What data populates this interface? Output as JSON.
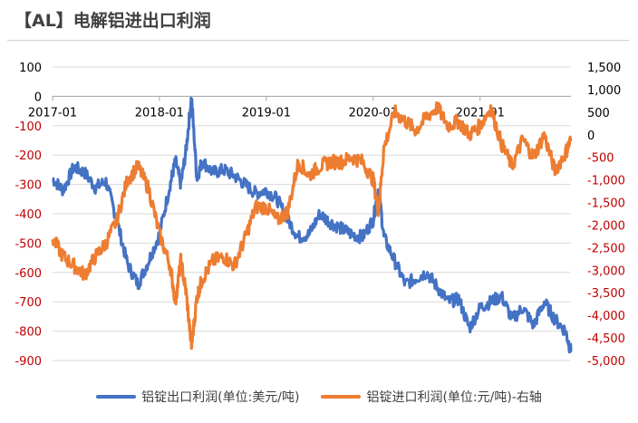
{
  "page": {
    "title": "【AL】电解铝进出口利润"
  },
  "colors": {
    "left_series": "#4472C4",
    "right_series": "#ED7D31",
    "neg_tick": "#C00000",
    "pos_tick": "#000000",
    "grid": "#D9D9D9"
  },
  "chart_data": {
    "type": "line",
    "title": "【AL】电解铝进出口利润",
    "x_type": "date",
    "x_range": [
      2017.0,
      2021.85
    ],
    "x_tick_labels": [
      "2017-01",
      "2018-01",
      "2019-01",
      "2020-01",
      "2021-01"
    ],
    "x_tick_values": [
      2017.0,
      2018.0,
      2019.0,
      2020.0,
      2021.0
    ],
    "y_left": {
      "label": "单位:美元/吨",
      "range": [
        -900,
        100
      ],
      "ticks": [
        100,
        0,
        -100,
        -200,
        -300,
        -400,
        -500,
        -600,
        -700,
        -800,
        -900
      ],
      "tick_labels": [
        "100",
        "0",
        "-100",
        "-200",
        "-300",
        "-400",
        "-500",
        "-600",
        "-700",
        "-800",
        "-900"
      ]
    },
    "y_right": {
      "label": "单位:元/吨",
      "range": [
        -5000,
        1500
      ],
      "ticks": [
        1500,
        1000,
        500,
        0,
        -500,
        -1000,
        -1500,
        -2000,
        -2500,
        -3000,
        -3500,
        -4000,
        -4500,
        -5000
      ],
      "tick_labels": [
        "1,500",
        "1,000",
        "500",
        "0",
        "-500",
        "-1,000",
        "-1,500",
        "-2,000",
        "-2,500",
        "-3,000",
        "-3,500",
        "-4,000",
        "-4,500",
        "-5,000"
      ]
    },
    "grid": true,
    "legend_position": "bottom",
    "series": [
      {
        "name": "铝锭出口利润(单位:美元/吨)",
        "axis": "left",
        "x": [
          2017.0,
          2017.1,
          2017.2,
          2017.3,
          2017.4,
          2017.5,
          2017.6,
          2017.7,
          2017.8,
          2017.9,
          2018.0,
          2018.1,
          2018.15,
          2018.2,
          2018.25,
          2018.3,
          2018.35,
          2018.4,
          2018.5,
          2018.6,
          2018.7,
          2018.8,
          2018.9,
          2019.0,
          2019.1,
          2019.2,
          2019.3,
          2019.4,
          2019.5,
          2019.6,
          2019.7,
          2019.8,
          2019.9,
          2020.0,
          2020.05,
          2020.1,
          2020.2,
          2020.3,
          2020.4,
          2020.5,
          2020.6,
          2020.7,
          2020.8,
          2020.9,
          2021.0,
          2021.1,
          2021.2,
          2021.3,
          2021.4,
          2021.5,
          2021.6,
          2021.7,
          2021.8,
          2021.85
        ],
        "values": [
          -280,
          -320,
          -240,
          -260,
          -310,
          -290,
          -420,
          -570,
          -640,
          -560,
          -470,
          -300,
          -220,
          -300,
          -180,
          0,
          -280,
          -220,
          -260,
          -250,
          -270,
          -300,
          -330,
          -320,
          -350,
          -420,
          -480,
          -470,
          -400,
          -430,
          -450,
          -470,
          -480,
          -420,
          -310,
          -480,
          -560,
          -640,
          -620,
          -600,
          -650,
          -700,
          -690,
          -790,
          -720,
          -700,
          -680,
          -760,
          -720,
          -780,
          -700,
          -760,
          -800,
          -870
        ]
      },
      {
        "name": "铝锭进口利润(单位:元/吨)-右轴",
        "axis": "right",
        "x": [
          2017.0,
          2017.1,
          2017.2,
          2017.3,
          2017.4,
          2017.5,
          2017.6,
          2017.7,
          2017.8,
          2017.9,
          2018.0,
          2018.1,
          2018.15,
          2018.2,
          2018.25,
          2018.3,
          2018.35,
          2018.4,
          2018.5,
          2018.6,
          2018.7,
          2018.8,
          2018.9,
          2019.0,
          2019.1,
          2019.2,
          2019.3,
          2019.4,
          2019.5,
          2019.6,
          2019.7,
          2019.8,
          2019.9,
          2020.0,
          2020.05,
          2020.1,
          2020.2,
          2020.3,
          2020.4,
          2020.5,
          2020.6,
          2020.7,
          2020.8,
          2020.9,
          2021.0,
          2021.1,
          2021.2,
          2021.3,
          2021.4,
          2021.5,
          2021.6,
          2021.7,
          2021.8,
          2021.85
        ],
        "values": [
          -2300,
          -2700,
          -2900,
          -3100,
          -2700,
          -2400,
          -1900,
          -1000,
          -700,
          -1200,
          -2200,
          -2900,
          -3700,
          -2800,
          -3500,
          -4700,
          -3600,
          -3200,
          -2800,
          -2700,
          -2900,
          -2300,
          -1600,
          -1600,
          -1900,
          -1700,
          -600,
          -900,
          -700,
          -600,
          -600,
          -500,
          -600,
          -1000,
          -1700,
          -300,
          500,
          300,
          100,
          400,
          600,
          200,
          300,
          0,
          200,
          600,
          -200,
          -700,
          -100,
          -500,
          0,
          -800,
          -400,
          -100
        ]
      }
    ]
  },
  "legend": {
    "items": [
      {
        "label": "铝锭出口利润(单位:美元/吨)"
      },
      {
        "label": "铝锭进口利润(单位:元/吨)-右轴"
      }
    ]
  }
}
